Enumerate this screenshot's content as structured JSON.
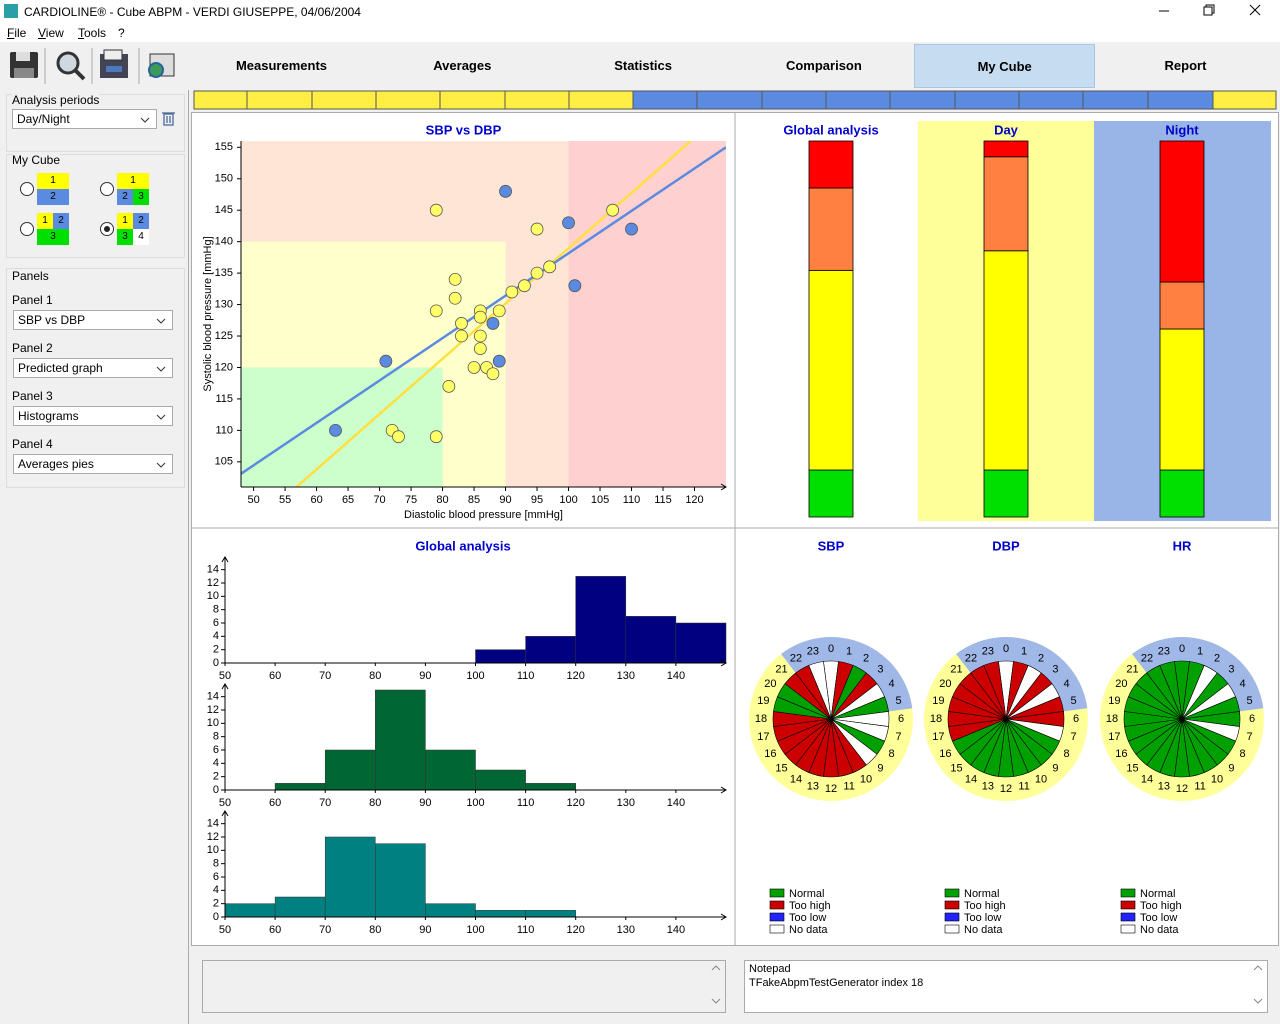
{
  "window": {
    "title": "CARDIOLINE® - Cube ABPM - VERDI GIUSEPPE, 04/06/2004"
  },
  "menu": [
    "File",
    "View",
    "Tools",
    "?"
  ],
  "tabs": [
    "Measurements",
    "Averages",
    "Statistics",
    "Comparison",
    "My Cube",
    "Report"
  ],
  "active_tab": 4,
  "sidebar": {
    "analysis_periods": {
      "label": "Analysis periods",
      "value": "Day/Night"
    },
    "my_cube": {
      "label": "My Cube",
      "options": [
        [
          [
            1
          ],
          [
            2
          ]
        ],
        [
          [
            1
          ],
          [
            2,
            3
          ]
        ],
        [
          [
            1,
            2
          ],
          [
            3
          ]
        ],
        [
          [
            1,
            2
          ],
          [
            3,
            4
          ]
        ]
      ],
      "cell_colors": [
        "#ffff00",
        "#5b8be0",
        "#00e000",
        "#ffffff"
      ],
      "selected": 3
    },
    "panels": {
      "label": "Panels",
      "items": [
        {
          "label": "Panel 1",
          "value": "SBP vs DBP"
        },
        {
          "label": "Panel 2",
          "value": "Predicted graph"
        },
        {
          "label": "Panel 3",
          "value": "Histograms"
        },
        {
          "label": "Panel 4",
          "value": "Averages pies"
        }
      ]
    }
  },
  "notepad": {
    "title": "Notepad",
    "text": "TFakeAbpmTestGenerator index 18"
  },
  "chart_data": [
    {
      "type": "scatter",
      "title": "SBP vs DBP",
      "xlabel": "Diastolic blood pressure [mmHg]",
      "ylabel": "Systolic blood pressure [mmHg]",
      "xlim": [
        48,
        125
      ],
      "ylim": [
        101,
        156
      ],
      "xticks": [
        50,
        55,
        60,
        65,
        70,
        75,
        80,
        85,
        90,
        95,
        100,
        105,
        110,
        115,
        120
      ],
      "yticks": [
        105,
        110,
        115,
        120,
        125,
        130,
        135,
        140,
        145,
        150,
        155
      ],
      "background": "#ffd0d0",
      "zones": [
        {
          "color": "#ffe5d5",
          "xmax": 100
        },
        {
          "color": "#ffffcc",
          "xmax": 90,
          "ymax": 140
        },
        {
          "color": "#ccffcc",
          "xmax": 80,
          "ymax": 120
        }
      ],
      "series": [
        {
          "color": "#ffff66",
          "x": [
            79,
            107,
            95,
            82,
            82,
            97,
            95,
            93,
            91,
            79,
            86,
            89,
            86,
            83,
            83,
            86,
            86,
            85,
            87,
            88,
            81,
            72,
            73,
            79
          ],
          "values": [
            145,
            145,
            142,
            134,
            131,
            136,
            135,
            133,
            132,
            129,
            129,
            129,
            128,
            127,
            125,
            125,
            123,
            120,
            120,
            119,
            117,
            110,
            109,
            109
          ]
        },
        {
          "color": "#5b8be0",
          "x": [
            90,
            100,
            110,
            101,
            88,
            89,
            71,
            63
          ],
          "values": [
            148,
            143,
            142,
            133,
            127,
            121,
            121,
            110
          ]
        }
      ],
      "lines": [
        {
          "color": "#ffe040",
          "x": [
            56.8,
            119.4
          ],
          "values": [
            101,
            156
          ]
        },
        {
          "color": "#5b8be0",
          "x": [
            48,
            125
          ],
          "values": [
            103.1,
            155
          ]
        }
      ]
    },
    {
      "type": "stacked_bar",
      "categories": [
        "Global analysis",
        "Day",
        "Night"
      ],
      "ylim": [
        0,
        100
      ],
      "backgrounds": [
        "#ffffff",
        "#ffff99",
        "#99b4e6"
      ],
      "series": [
        {
          "color": "#00e000",
          "values": [
            12.5,
            12.5,
            12.5
          ]
        },
        {
          "color": "#ffff00",
          "values": [
            53.1,
            58.3,
            37.5
          ]
        },
        {
          "color": "#ff8040",
          "values": [
            21.9,
            25,
            12.5
          ]
        },
        {
          "color": "#ff0000",
          "values": [
            12.5,
            4.2,
            37.5
          ]
        }
      ]
    },
    {
      "type": "histogram",
      "title": "Global analysis",
      "color": "#000080",
      "bins": [
        50,
        60,
        70,
        80,
        90,
        100,
        110,
        120,
        130,
        140,
        150
      ],
      "values": [
        0,
        0,
        0,
        0,
        0,
        2,
        4,
        13,
        7,
        6
      ],
      "xlim": [
        50,
        150
      ],
      "xticks": [
        50,
        60,
        70,
        80,
        90,
        100,
        110,
        120,
        130,
        140
      ],
      "ylim": [
        0,
        15
      ],
      "yticks": [
        0,
        2,
        4,
        6,
        8,
        10,
        12,
        14
      ]
    },
    {
      "type": "histogram",
      "color": "#006633",
      "bins": [
        50,
        60,
        70,
        80,
        90,
        100,
        110,
        120,
        130,
        140,
        150
      ],
      "values": [
        0,
        1,
        6,
        15,
        6,
        3,
        1,
        0,
        0,
        0
      ],
      "xlim": [
        50,
        150
      ],
      "xticks": [
        50,
        60,
        70,
        80,
        90,
        100,
        110,
        120,
        130,
        140
      ],
      "ylim": [
        0,
        15
      ],
      "yticks": [
        0,
        2,
        4,
        6,
        8,
        10,
        12,
        14
      ]
    },
    {
      "type": "histogram",
      "color": "#008080",
      "bins": [
        50,
        60,
        70,
        80,
        90,
        100,
        110,
        120,
        130,
        140,
        150
      ],
      "values": [
        2,
        3,
        12,
        11,
        2,
        1,
        1,
        0,
        0,
        0
      ],
      "xlim": [
        50,
        150
      ],
      "xticks": [
        50,
        60,
        70,
        80,
        90,
        100,
        110,
        120,
        130,
        140
      ],
      "ylim": [
        0,
        15
      ],
      "yticks": [
        0,
        2,
        4,
        6,
        8,
        10,
        12,
        14
      ]
    },
    {
      "type": "clock",
      "title": "SBP",
      "day_color": "#ffff99",
      "night_color": "#a0b8e8",
      "night_hours": [
        22,
        6
      ],
      "hours": [
        0,
        1,
        2,
        3,
        4,
        5,
        6,
        7,
        8,
        9,
        10,
        11,
        12,
        13,
        14,
        15,
        16,
        17,
        18,
        19,
        20,
        21,
        22,
        23
      ],
      "values": [
        3,
        1,
        0,
        1,
        3,
        0,
        3,
        3,
        0,
        3,
        1,
        1,
        1,
        1,
        1,
        1,
        1,
        1,
        1,
        0,
        0,
        1,
        1,
        3
      ],
      "legend": [
        {
          "name": "Normal",
          "color": "#00a000"
        },
        {
          "name": "Too high",
          "color": "#cc0000"
        },
        {
          "name": "Too low",
          "color": "#2222ff"
        },
        {
          "name": "No data",
          "color": "#ffffff"
        }
      ]
    },
    {
      "type": "clock",
      "title": "DBP",
      "day_color": "#ffff99",
      "night_color": "#a0b8e8",
      "night_hours": [
        22,
        6
      ],
      "hours": [
        0,
        1,
        2,
        3,
        4,
        5,
        6,
        7,
        8,
        9,
        10,
        11,
        12,
        13,
        14,
        15,
        16,
        17,
        18,
        19,
        20,
        21,
        22,
        23
      ],
      "values": [
        3,
        1,
        3,
        1,
        3,
        1,
        1,
        3,
        0,
        0,
        0,
        0,
        0,
        0,
        0,
        0,
        0,
        1,
        1,
        1,
        1,
        1,
        1,
        1
      ],
      "legend": [
        {
          "name": "Normal",
          "color": "#00a000"
        },
        {
          "name": "Too high",
          "color": "#cc0000"
        },
        {
          "name": "Too low",
          "color": "#2222ff"
        },
        {
          "name": "No data",
          "color": "#ffffff"
        }
      ]
    },
    {
      "type": "clock",
      "title": "HR",
      "day_color": "#ffff99",
      "night_color": "#a0b8e8",
      "night_hours": [
        22,
        6
      ],
      "hours": [
        0,
        1,
        2,
        3,
        4,
        5,
        6,
        7,
        8,
        9,
        10,
        11,
        12,
        13,
        14,
        15,
        16,
        17,
        18,
        19,
        20,
        21,
        22,
        23
      ],
      "values": [
        0,
        0,
        3,
        0,
        3,
        0,
        0,
        3,
        0,
        0,
        0,
        0,
        0,
        0,
        0,
        0,
        0,
        0,
        0,
        0,
        0,
        0,
        0,
        0
      ],
      "legend": [
        {
          "name": "Normal",
          "color": "#00a000"
        },
        {
          "name": "Too high",
          "color": "#cc0000"
        },
        {
          "name": "Too low",
          "color": "#2222ff"
        },
        {
          "name": "No data",
          "color": "#ffffff"
        }
      ]
    }
  ]
}
